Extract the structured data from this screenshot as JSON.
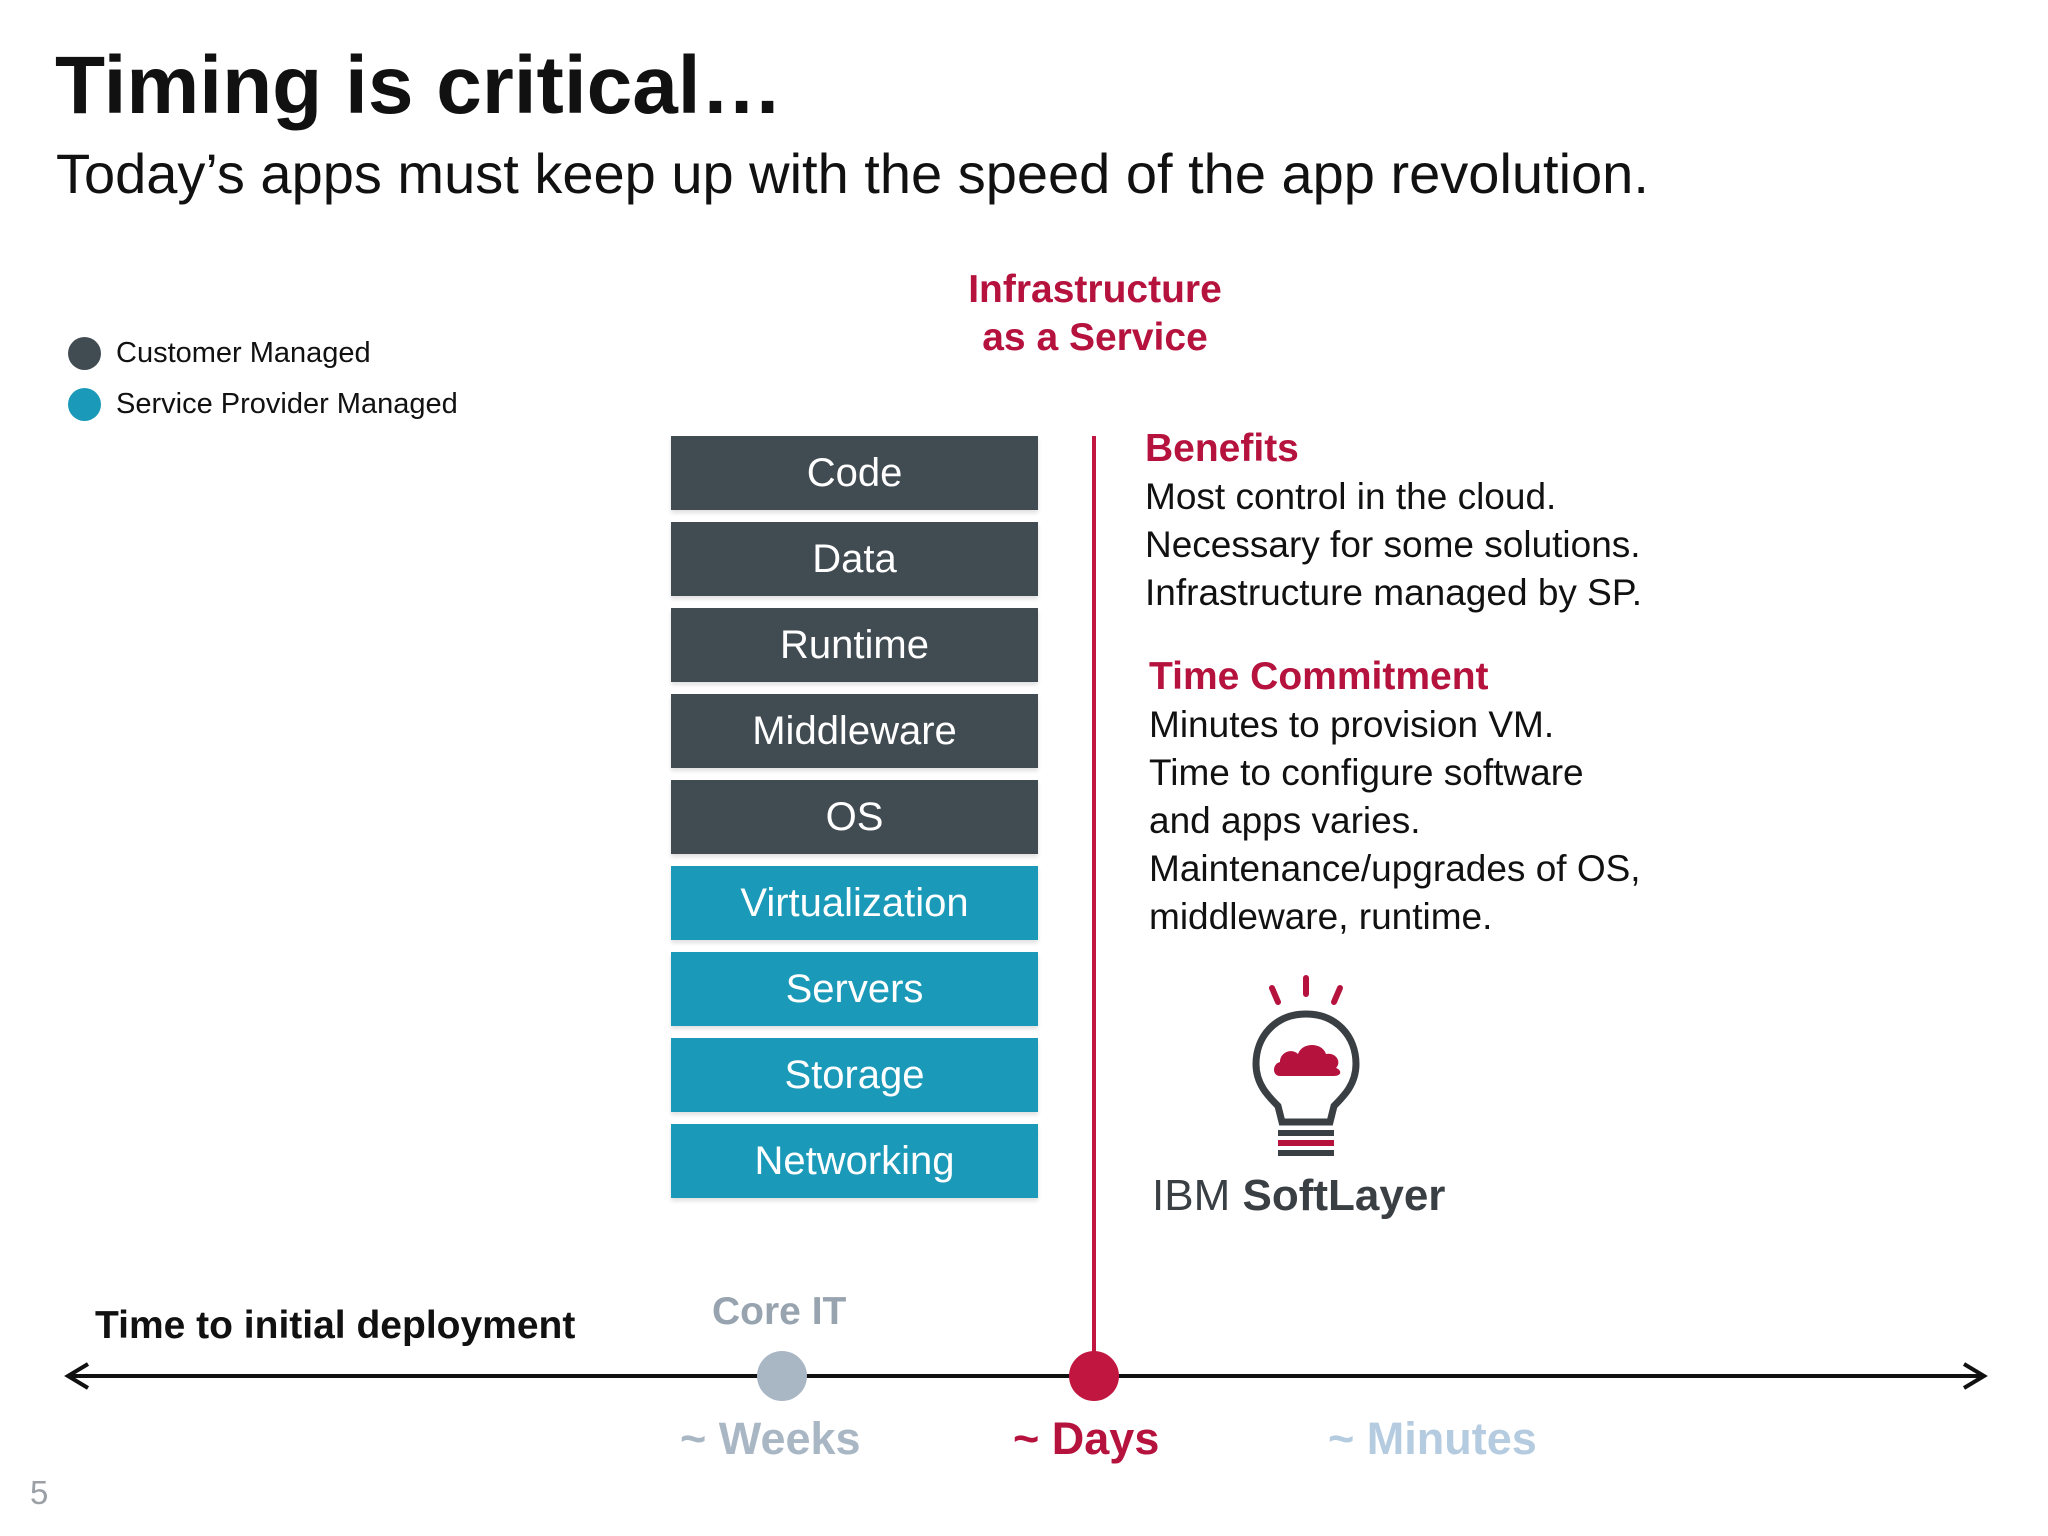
{
  "slide": {
    "title": "Timing is critical…",
    "subtitle": "Today’s apps must keep up with the speed of the app revolution.",
    "page_number": "5"
  },
  "legend": [
    {
      "label": "Customer Managed",
      "color": "#414b52"
    },
    {
      "label": "Service Provider Managed",
      "color": "#1a99b8"
    }
  ],
  "iaas": {
    "heading_line1": "Infrastructure",
    "heading_line2": "as a Service"
  },
  "stack": [
    {
      "label": "Code",
      "managed_by": "customer"
    },
    {
      "label": "Data",
      "managed_by": "customer"
    },
    {
      "label": "Runtime",
      "managed_by": "customer"
    },
    {
      "label": "Middleware",
      "managed_by": "customer"
    },
    {
      "label": "OS",
      "managed_by": "customer"
    },
    {
      "label": "Virtualization",
      "managed_by": "provider"
    },
    {
      "label": "Servers",
      "managed_by": "provider"
    },
    {
      "label": "Storage",
      "managed_by": "provider"
    },
    {
      "label": "Networking",
      "managed_by": "provider"
    }
  ],
  "benefits": {
    "title": "Benefits",
    "lines": [
      "Most control in the cloud.",
      "Necessary for some solutions.",
      "Infrastructure managed by SP."
    ]
  },
  "time_commitment": {
    "title": "Time Commitment",
    "lines": [
      "Minutes to provision VM.",
      "Time to configure software",
      "and apps varies.",
      "Maintenance/upgrades of OS,",
      "middleware, runtime."
    ]
  },
  "logo": {
    "icon": "cloud-lightbulb-icon",
    "brand": "IBM",
    "product": "SoftLayer"
  },
  "timeline": {
    "label": "Time to initial deployment",
    "core_it_label": "Core IT",
    "ticks": [
      {
        "label": "~ Weeks",
        "color": "#a9b6c4"
      },
      {
        "label": "~ Days",
        "color": "#b5123e"
      },
      {
        "label": "~ Minutes",
        "color": "#b4cbe0"
      }
    ]
  },
  "colors": {
    "accent": "#b5123e",
    "customer": "#414b52",
    "provider": "#1a99b8",
    "core_it_marker": "#a9b6c4",
    "core_it_text": "#97a3ae"
  }
}
